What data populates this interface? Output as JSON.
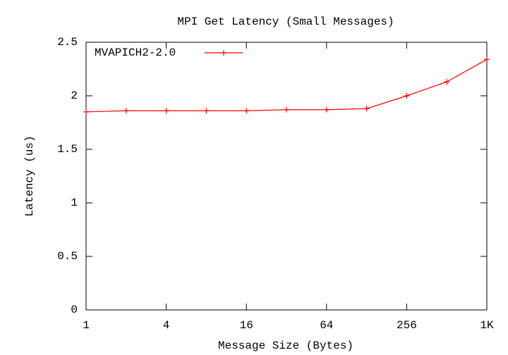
{
  "chart_data": {
    "type": "line",
    "title": "MPI Get Latency (Small Messages)",
    "x_label": "Message Size (Bytes)",
    "y_label": "Latency (us)",
    "x": [
      1,
      2,
      4,
      8,
      16,
      32,
      64,
      128,
      256,
      512,
      1024
    ],
    "series": [
      {
        "name": "MVAPICH2-2.0",
        "color": "#ff0000",
        "values": [
          1.85,
          1.86,
          1.86,
          1.86,
          1.86,
          1.87,
          1.87,
          1.88,
          2.0,
          2.13,
          2.34
        ]
      }
    ],
    "xlim": [
      1,
      1024
    ],
    "xticks": [
      1,
      4,
      16,
      64,
      256,
      {
        "value": 1024,
        "label": "1K"
      }
    ],
    "xlog_base": 2,
    "ylim": [
      0,
      2.5
    ],
    "yticks": [
      0,
      0.5,
      1,
      1.5,
      2,
      2.5
    ],
    "grid": false,
    "legend": "top-left"
  }
}
